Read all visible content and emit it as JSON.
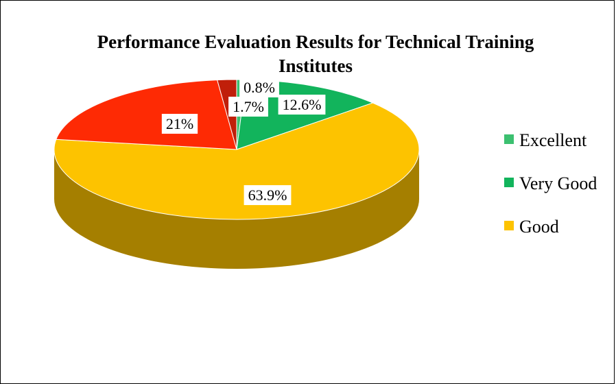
{
  "chart_data": {
    "type": "pie3d",
    "title": "Performance Evaluation Results for Technical Training Institutes",
    "categories": [
      "Excellent",
      "Very Good",
      "Good",
      null,
      null
    ],
    "values": [
      0.8,
      12.6,
      63.9,
      21,
      1.7
    ],
    "value_labels": [
      "0.8%",
      "12.6%",
      "63.9%",
      "21%",
      "1.7%"
    ],
    "colors": [
      "#3cc070",
      "#12b45c",
      "#fdc300",
      "#fe2a04",
      "#c01f0a"
    ]
  }
}
